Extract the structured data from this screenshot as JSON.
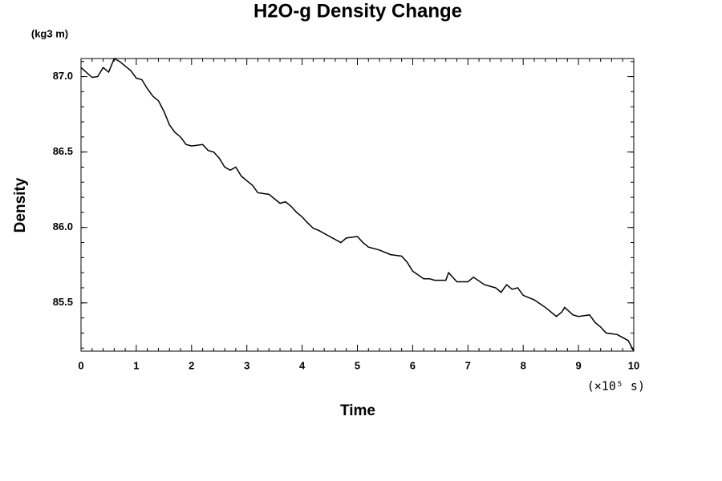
{
  "chart_data": {
    "type": "line",
    "title": "H2O-g Density Change",
    "xlabel": "Time",
    "ylabel": "Density",
    "y_unit": "(kg3 m)",
    "x_unit": "(×10⁵ s)",
    "xlim": [
      0,
      10
    ],
    "xticks": [
      0,
      1,
      2,
      3,
      4,
      5,
      6,
      7,
      8,
      9,
      10
    ],
    "ylim": [
      85.18,
      87.12
    ],
    "yticks": [
      {
        "value": 85.5,
        "label": "85.5"
      },
      {
        "value": 86,
        "label": "86.0"
      },
      {
        "value": 86.5,
        "label": "86.5"
      },
      {
        "value": 87,
        "label": "87.0"
      }
    ],
    "series": [
      {
        "name": "H2O-g",
        "color": "#000000",
        "x": [
          0,
          0.2,
          0.3,
          0.4,
          0.5,
          0.6,
          0.7,
          0.8,
          0.9,
          1.0,
          1.1,
          1.2,
          1.3,
          1.4,
          1.5,
          1.6,
          1.7,
          1.8,
          1.9,
          2.0,
          2.2,
          2.3,
          2.4,
          2.5,
          2.6,
          2.7,
          2.8,
          2.9,
          3.0,
          3.1,
          3.2,
          3.4,
          3.6,
          3.7,
          3.8,
          3.9,
          4.0,
          4.1,
          4.2,
          4.3,
          4.5,
          4.7,
          4.8,
          5.0,
          5.1,
          5.2,
          5.4,
          5.6,
          5.8,
          5.9,
          6.0,
          6.2,
          6.3,
          6.4,
          6.6,
          6.65,
          6.8,
          7.0,
          7.1,
          7.3,
          7.5,
          7.6,
          7.7,
          7.8,
          7.9,
          8.0,
          8.2,
          8.4,
          8.5,
          8.6,
          8.7,
          8.75,
          8.9,
          9.0,
          9.2,
          9.3,
          9.4,
          9.5,
          9.7,
          9.8,
          9.9,
          10.0
        ],
        "values": [
          87.06,
          86.995,
          87.0,
          87.06,
          87.03,
          87.12,
          87.1,
          87.07,
          87.04,
          86.99,
          86.98,
          86.92,
          86.87,
          86.84,
          86.77,
          86.68,
          86.63,
          86.6,
          86.55,
          86.54,
          86.55,
          86.51,
          86.5,
          86.46,
          86.4,
          86.38,
          86.4,
          86.34,
          86.31,
          86.28,
          86.23,
          86.22,
          86.16,
          86.17,
          86.14,
          86.1,
          86.07,
          86.03,
          85.995,
          85.98,
          85.94,
          85.9,
          85.93,
          85.94,
          85.9,
          85.87,
          85.85,
          85.82,
          85.81,
          85.77,
          85.71,
          85.66,
          85.66,
          85.65,
          85.65,
          85.7,
          85.64,
          85.64,
          85.67,
          85.62,
          85.6,
          85.57,
          85.62,
          85.59,
          85.6,
          85.55,
          85.52,
          85.47,
          85.44,
          85.41,
          85.44,
          85.47,
          85.42,
          85.41,
          85.42,
          85.37,
          85.34,
          85.3,
          85.29,
          85.27,
          85.25,
          85.18
        ]
      }
    ]
  }
}
